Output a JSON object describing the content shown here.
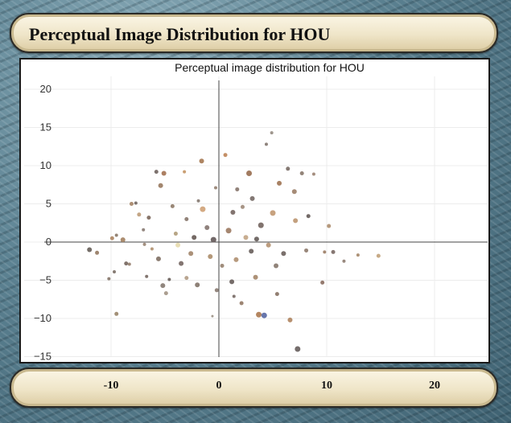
{
  "header": {
    "title": "Perceptual Image Distribution for HOU"
  },
  "chart_data": {
    "type": "scatter",
    "title": "Perceptual image distribution for HOU",
    "xlabel": "",
    "ylabel": "",
    "xlim": [
      -15,
      25
    ],
    "ylim": [
      -15,
      22
    ],
    "x_ticks": [
      "-10",
      "0",
      "10",
      "20"
    ],
    "y_ticks": [
      "20",
      "15",
      "10",
      "5",
      "0",
      "−5",
      "−10",
      "−15"
    ],
    "x_tick_values": [
      -10,
      0,
      10,
      20
    ],
    "y_tick_values": [
      20,
      15,
      10,
      5,
      0,
      -5,
      -10,
      -15
    ],
    "grid": true,
    "points": [
      {
        "x": -12,
        "y": -1,
        "c": "#6e6660",
        "s": 3
      },
      {
        "x": -11.3,
        "y": -1.4,
        "c": "#9a8068",
        "s": 2.5
      },
      {
        "x": -10.2,
        "y": -4.8,
        "c": "#8a7b70",
        "s": 2
      },
      {
        "x": -9.5,
        "y": -9.4,
        "c": "#9d8a70",
        "s": 2.5
      },
      {
        "x": -9.7,
        "y": -3.9,
        "c": "#7f746c",
        "s": 2
      },
      {
        "x": -9.9,
        "y": 0.5,
        "c": "#b08a68",
        "s": 2.5
      },
      {
        "x": -9.5,
        "y": 0.9,
        "c": "#8e7d6e",
        "s": 2
      },
      {
        "x": -8.9,
        "y": 0.3,
        "c": "#a88767",
        "s": 3
      },
      {
        "x": -8.6,
        "y": -2.8,
        "c": "#7a6c64",
        "s": 2.5
      },
      {
        "x": -8.3,
        "y": -2.9,
        "c": "#9a8574",
        "s": 2
      },
      {
        "x": -8.1,
        "y": 5.0,
        "c": "#a9896d",
        "s": 2.5
      },
      {
        "x": -7.7,
        "y": 5.1,
        "c": "#776d68",
        "s": 2
      },
      {
        "x": -7.4,
        "y": 3.6,
        "c": "#c1a180",
        "s": 2.5
      },
      {
        "x": -7.0,
        "y": 1.6,
        "c": "#8d8078",
        "s": 2
      },
      {
        "x": -6.9,
        "y": -0.3,
        "c": "#9e8a79",
        "s": 2
      },
      {
        "x": -6.5,
        "y": 3.2,
        "c": "#816e62",
        "s": 2.5
      },
      {
        "x": -6.2,
        "y": -0.9,
        "c": "#b49676",
        "s": 2
      },
      {
        "x": -5.8,
        "y": 9.2,
        "c": "#766a66",
        "s": 2.5
      },
      {
        "x": -5.4,
        "y": 7.4,
        "c": "#9d7f66",
        "s": 3
      },
      {
        "x": -5.1,
        "y": 9.0,
        "c": "#a8785a",
        "s": 3
      },
      {
        "x": -5.6,
        "y": -2.2,
        "c": "#857569",
        "s": 3
      },
      {
        "x": -5.2,
        "y": -5.7,
        "c": "#8b7f77",
        "s": 3
      },
      {
        "x": -4.9,
        "y": -6.7,
        "c": "#a7998a",
        "s": 2.5
      },
      {
        "x": -4.6,
        "y": -4.9,
        "c": "#6e6460",
        "s": 2
      },
      {
        "x": -4.3,
        "y": 4.7,
        "c": "#947f6f",
        "s": 2.5
      },
      {
        "x": -4.0,
        "y": 1.1,
        "c": "#b3a07e",
        "s": 2.5
      },
      {
        "x": -3.8,
        "y": -0.4,
        "c": "#e8dcb0",
        "s": 3
      },
      {
        "x": -3.5,
        "y": -2.8,
        "c": "#7c6e69",
        "s": 3
      },
      {
        "x": -3.2,
        "y": 9.2,
        "c": "#c79a6b",
        "s": 2
      },
      {
        "x": -3.0,
        "y": 3.0,
        "c": "#8c7c72",
        "s": 2.5
      },
      {
        "x": -2.6,
        "y": -1.5,
        "c": "#a68b72",
        "s": 3
      },
      {
        "x": -2.3,
        "y": 0.6,
        "c": "#6d615c",
        "s": 3
      },
      {
        "x": -2.0,
        "y": -5.6,
        "c": "#887a70",
        "s": 3
      },
      {
        "x": -1.6,
        "y": 10.6,
        "c": "#aa7e5a",
        "s": 3
      },
      {
        "x": -1.5,
        "y": 4.3,
        "c": "#d2a57c",
        "s": 3.5
      },
      {
        "x": -1.1,
        "y": 1.9,
        "c": "#8a7b76",
        "s": 3
      },
      {
        "x": -0.8,
        "y": -1.9,
        "c": "#b09272",
        "s": 3
      },
      {
        "x": -0.5,
        "y": 0.3,
        "c": "#6a6060",
        "s": 3.5
      },
      {
        "x": -0.2,
        "y": -6.3,
        "c": "#8f8278",
        "s": 2.5
      },
      {
        "x": -0.6,
        "y": -9.7,
        "c": "#9e9388",
        "s": 1.5
      },
      {
        "x": 0.6,
        "y": 11.4,
        "c": "#c1895e",
        "s": 2.5
      },
      {
        "x": 0.9,
        "y": 1.5,
        "c": "#a08068",
        "s": 3.5
      },
      {
        "x": 1.3,
        "y": 3.9,
        "c": "#7b6d67",
        "s": 3
      },
      {
        "x": 1.6,
        "y": -2.3,
        "c": "#b39577",
        "s": 3
      },
      {
        "x": 1.2,
        "y": -5.2,
        "c": "#6f6562",
        "s": 3
      },
      {
        "x": 1.7,
        "y": 6.9,
        "c": "#8c7b73",
        "s": 2.5
      },
      {
        "x": 2.1,
        "y": -8.0,
        "c": "#987e6b",
        "s": 2.5
      },
      {
        "x": 2.5,
        "y": 0.6,
        "c": "#c5a98a",
        "s": 3
      },
      {
        "x": 2.8,
        "y": 9.0,
        "c": "#9d7457",
        "s": 3.5
      },
      {
        "x": 3.1,
        "y": 5.7,
        "c": "#7c716d",
        "s": 3
      },
      {
        "x": 3.4,
        "y": -4.6,
        "c": "#a98b70",
        "s": 3
      },
      {
        "x": 3.7,
        "y": -9.5,
        "c": "#b07f57",
        "s": 3.5
      },
      {
        "x": 4.2,
        "y": -9.6,
        "c": "#5f6fa8",
        "s": 3.5
      },
      {
        "x": 3.9,
        "y": 2.2,
        "c": "#7a6b66",
        "s": 3.5
      },
      {
        "x": 4.4,
        "y": 12.8,
        "c": "#887c75",
        "s": 2
      },
      {
        "x": 4.9,
        "y": 14.3,
        "c": "#9a9087",
        "s": 2
      },
      {
        "x": 5.0,
        "y": 3.8,
        "c": "#c49d78",
        "s": 3.5
      },
      {
        "x": 5.3,
        "y": -3.1,
        "c": "#8b7d73",
        "s": 3
      },
      {
        "x": 5.6,
        "y": 7.7,
        "c": "#a37a5b",
        "s": 3
      },
      {
        "x": 6.0,
        "y": -1.5,
        "c": "#736864",
        "s": 3
      },
      {
        "x": 6.4,
        "y": 9.6,
        "c": "#7e726c",
        "s": 2.5
      },
      {
        "x": 6.6,
        "y": -10.2,
        "c": "#b38a67",
        "s": 3
      },
      {
        "x": 7.0,
        "y": 6.6,
        "c": "#a18670",
        "s": 3
      },
      {
        "x": 7.3,
        "y": -14.0,
        "c": "#6e6564",
        "s": 3.5
      },
      {
        "x": 7.1,
        "y": 2.8,
        "c": "#c09b77",
        "s": 3
      },
      {
        "x": 7.7,
        "y": 9.0,
        "c": "#8d7d72",
        "s": 2.5
      },
      {
        "x": 8.1,
        "y": -1.1,
        "c": "#927f72",
        "s": 2.5
      },
      {
        "x": 8.3,
        "y": 3.4,
        "c": "#6b625f",
        "s": 2.5
      },
      {
        "x": 8.8,
        "y": 8.9,
        "c": "#9f8878",
        "s": 2
      },
      {
        "x": 9.6,
        "y": -5.3,
        "c": "#8e7366",
        "s": 2.5
      },
      {
        "x": 10.2,
        "y": 2.1,
        "c": "#b29476",
        "s": 2.5
      },
      {
        "x": 10.6,
        "y": -1.3,
        "c": "#7f706a",
        "s": 2.5
      },
      {
        "x": 9.8,
        "y": -1.3,
        "c": "#a0836c",
        "s": 2
      },
      {
        "x": 11.6,
        "y": -2.5,
        "c": "#938378",
        "s": 2
      },
      {
        "x": 12.9,
        "y": -1.7,
        "c": "#a98c70",
        "s": 2
      },
      {
        "x": 14.8,
        "y": -1.8,
        "c": "#c4a57f",
        "s": 2.5
      },
      {
        "x": -1.9,
        "y": 5.4,
        "c": "#8a7e76",
        "s": 2
      },
      {
        "x": 2.2,
        "y": 4.6,
        "c": "#a28e7e",
        "s": 2.5
      },
      {
        "x": 3.0,
        "y": -1.2,
        "c": "#6f6562",
        "s": 3
      },
      {
        "x": -3.0,
        "y": -4.7,
        "c": "#b5a08a",
        "s": 2.5
      },
      {
        "x": 0.3,
        "y": -3.1,
        "c": "#9b8775",
        "s": 2.5
      },
      {
        "x": 1.4,
        "y": -7.1,
        "c": "#7d716c",
        "s": 2
      },
      {
        "x": 5.4,
        "y": -6.8,
        "c": "#8c786a",
        "s": 2.5
      },
      {
        "x": 4.6,
        "y": -0.4,
        "c": "#b99878",
        "s": 3
      },
      {
        "x": -6.7,
        "y": -4.5,
        "c": "#7c6f68",
        "s": 2
      },
      {
        "x": -0.3,
        "y": 7.1,
        "c": "#988576",
        "s": 2
      },
      {
        "x": 3.5,
        "y": 0.4,
        "c": "#6c6360",
        "s": 3
      }
    ]
  }
}
